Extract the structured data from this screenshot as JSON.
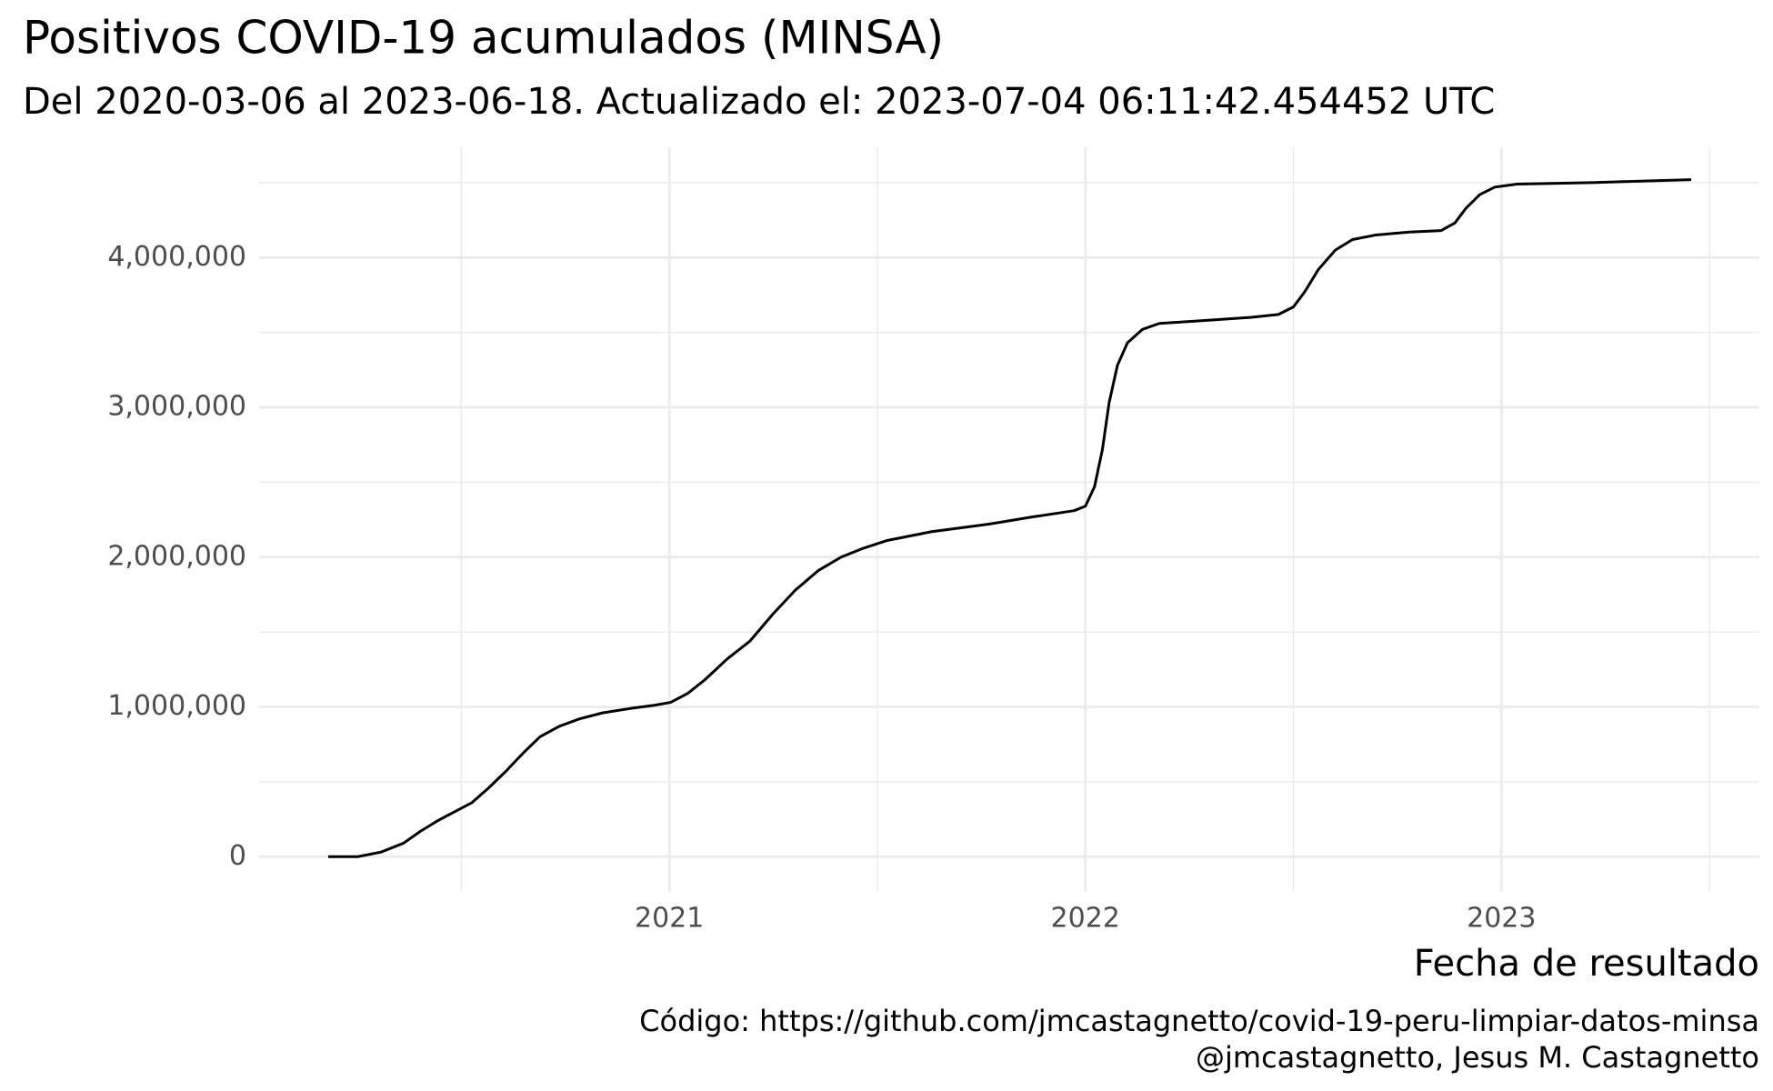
{
  "chart_data": {
    "type": "line",
    "title": "Positivos COVID-19 acumulados (MINSA)",
    "subtitle": "Del 2020-03-06 al 2023-06-18. Actualizado el: 2023-07-04 06:11:42.454452 UTC",
    "x_label": "Fecha de resultado",
    "caption": [
      "Código: https://github.com/jmcastagnetto/covid-19-peru-limpiar-datos-minsa",
      "@jmcastagnetto, Jesus M. Castagnetto"
    ],
    "color": "#000000",
    "grid": true,
    "x": [
      2020.18,
      2020.251,
      2020.306,
      2020.361,
      2020.402,
      2020.443,
      2020.484,
      2020.525,
      2020.566,
      2020.607,
      2020.648,
      2020.689,
      2020.735,
      2020.784,
      2020.839,
      2020.907,
      2020.962,
      2021.003,
      2021.044,
      2021.085,
      2021.139,
      2021.194,
      2021.249,
      2021.303,
      2021.358,
      2021.413,
      2021.467,
      2021.522,
      2021.631,
      2021.768,
      2021.877,
      2021.973,
      2022.0,
      2022.022,
      2022.041,
      2022.057,
      2022.077,
      2022.101,
      2022.137,
      2022.178,
      2022.287,
      2022.396,
      2022.464,
      2022.5,
      2022.527,
      2022.56,
      2022.601,
      2022.642,
      2022.697,
      2022.779,
      2022.855,
      2022.888,
      2022.915,
      2022.948,
      2022.984,
      2023.038,
      2023.216,
      2023.456
    ],
    "values": [
      0,
      0,
      30000,
      90000,
      170000,
      240000,
      300000,
      360000,
      460000,
      570000,
      690000,
      800000,
      870000,
      920000,
      960000,
      990000,
      1010000,
      1030000,
      1090000,
      1180000,
      1320000,
      1440000,
      1620000,
      1780000,
      1910000,
      2000000,
      2060000,
      2110000,
      2170000,
      2220000,
      2270000,
      2310000,
      2340000,
      2470000,
      2720000,
      3030000,
      3280000,
      3430000,
      3520000,
      3560000,
      3580000,
      3600000,
      3620000,
      3670000,
      3770000,
      3920000,
      4050000,
      4120000,
      4150000,
      4170000,
      4180000,
      4230000,
      4330000,
      4420000,
      4470000,
      4490000,
      4500000,
      4520000
    ],
    "xlim": [
      2020.014,
      2023.62
    ],
    "xticks": [
      2021,
      2022,
      2023
    ],
    "ylim": [
      -235000,
      4736000
    ],
    "yticks": [
      0,
      {
        "value": 1000000,
        "label": "1,000,000"
      },
      {
        "value": 2000000,
        "label": "2,000,000"
      },
      {
        "value": 3000000,
        "label": "3,000,000"
      },
      {
        "value": 4000000,
        "label": "4,000,000"
      }
    ]
  }
}
